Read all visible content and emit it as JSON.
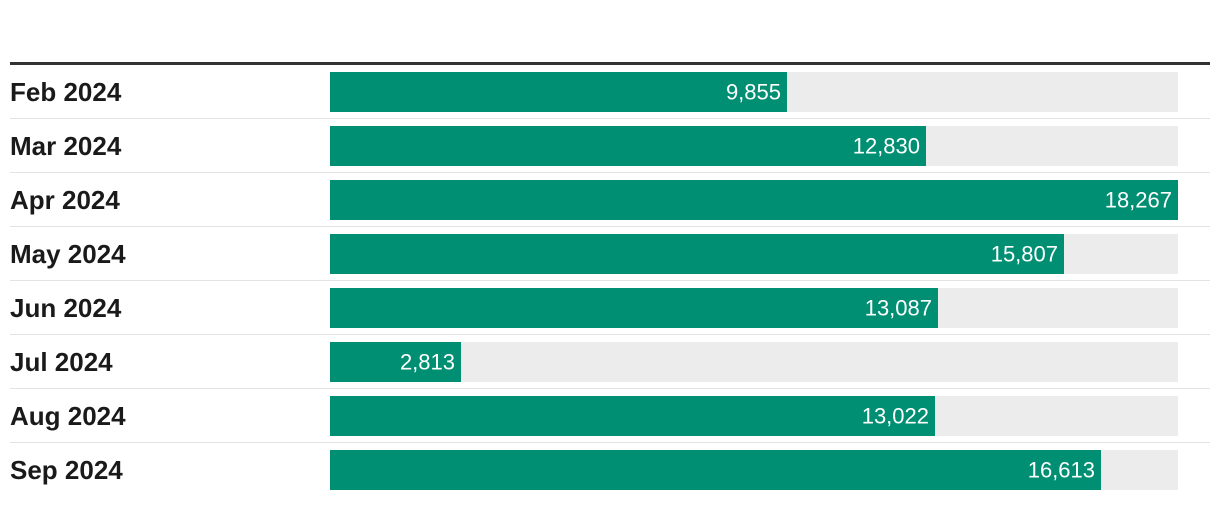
{
  "chart_data": {
    "type": "bar",
    "orientation": "horizontal",
    "categories": [
      "Feb 2024",
      "Mar 2024",
      "Apr 2024",
      "May 2024",
      "Jun 2024",
      "Jul 2024",
      "Aug 2024",
      "Sep 2024"
    ],
    "values": [
      9855,
      12830,
      18267,
      15807,
      13087,
      2813,
      13022,
      16613
    ],
    "value_labels": [
      "9,855",
      "12,830",
      "18,267",
      "15,807",
      "13,087",
      "2,813",
      "13,022",
      "16,613"
    ],
    "xlim": [
      0,
      18267
    ],
    "title": "",
    "xlabel": "",
    "ylabel": "",
    "grid": false,
    "colors": {
      "bar": "#008f72",
      "track": "#ececec",
      "separator": "#e3e3e3",
      "top_rule": "#333333"
    }
  }
}
